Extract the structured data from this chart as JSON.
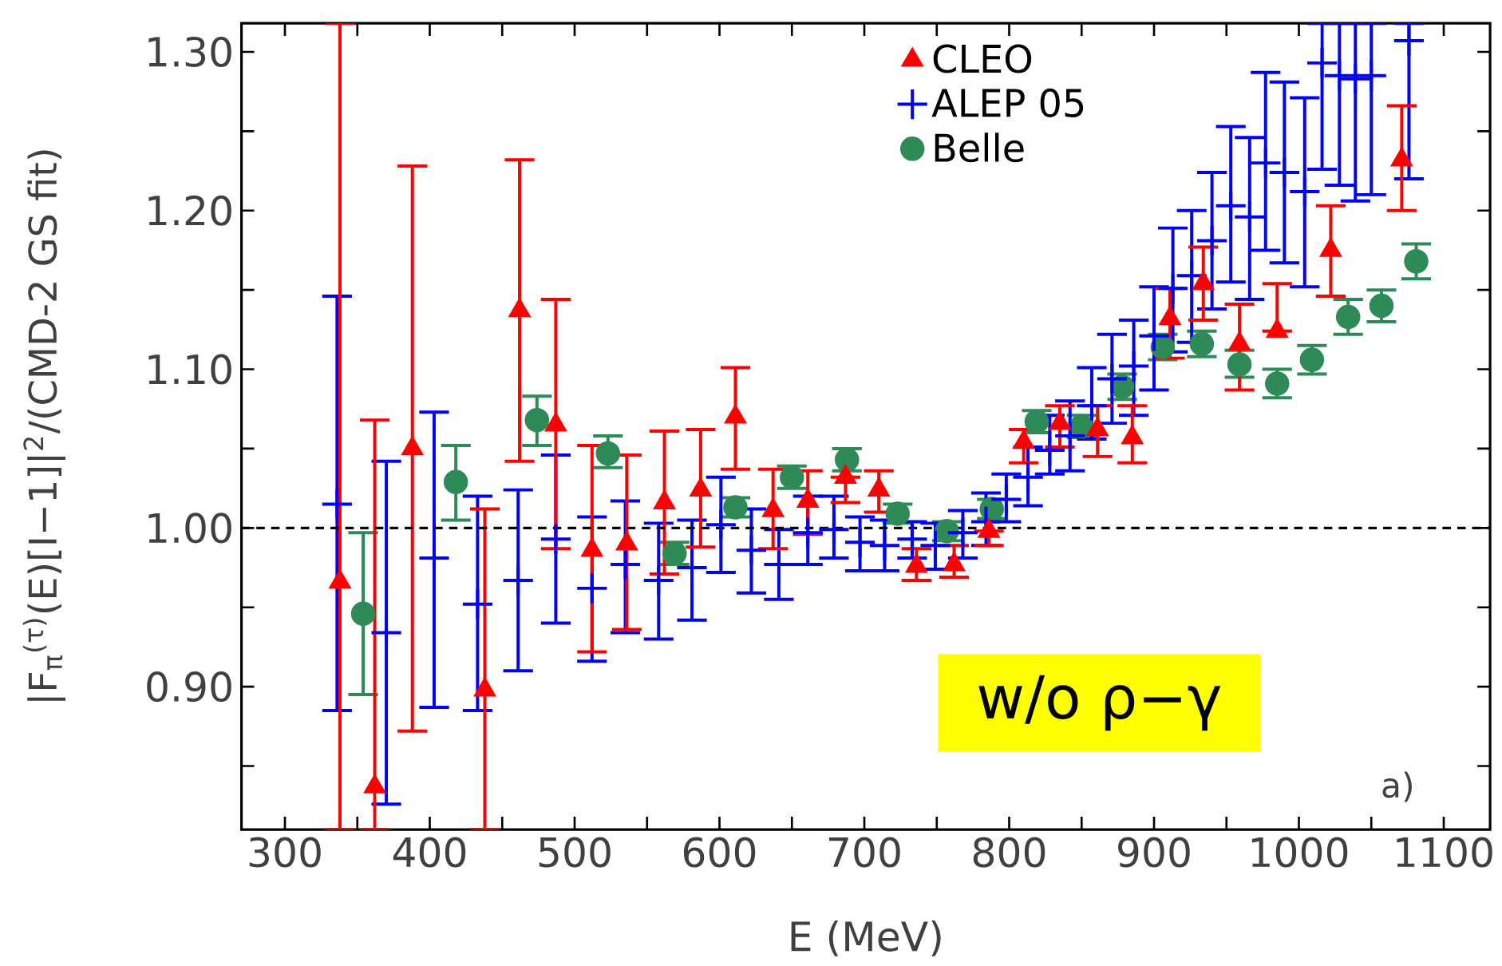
{
  "chart_data": {
    "type": "scatter",
    "xlabel": "E (MeV)",
    "ylabel": "|F$_{π}$$^{(τ)}$(E)[I−1]|$^{2}$/(CMD-2 GS fit)",
    "xlim": [
      270,
      1132
    ],
    "ylim": [
      0.81,
      1.318
    ],
    "xticks": [
      300,
      {
        "value": 350,
        "label": null
      },
      400,
      {
        "value": 450,
        "label": null
      },
      500,
      {
        "value": 550,
        "label": null
      },
      600,
      {
        "value": 650,
        "label": null
      },
      700,
      {
        "value": 750,
        "label": null
      },
      800,
      {
        "value": 850,
        "label": null
      },
      900,
      {
        "value": 950,
        "label": null
      },
      1000,
      {
        "value": 1050,
        "label": null
      },
      1100
    ],
    "yticks": [
      {
        "value": 0.85,
        "label": null
      },
      {
        "value": 0.9,
        "label": "0.90"
      },
      {
        "value": 0.95,
        "label": null
      },
      {
        "value": 1.0,
        "label": "1.00"
      },
      {
        "value": 1.05,
        "label": null
      },
      {
        "value": 1.1,
        "label": "1.10"
      },
      {
        "value": 1.15,
        "label": null
      },
      {
        "value": 1.2,
        "label": "1.20"
      },
      {
        "value": 1.25,
        "label": null
      },
      {
        "value": 1.3,
        "label": "1.30"
      }
    ],
    "legend": "top",
    "ref_lines": [
      {
        "axis": "y",
        "value": 1.0,
        "color": "#000000",
        "line_style": "dashed"
      }
    ],
    "annotations": [
      "w/o ρ−γ",
      "a)"
    ],
    "series": [
      {
        "name": "CLEO",
        "color": "#ff0000",
        "marker": "triangle",
        "x": [
          338,
          362,
          388,
          412,
          438,
          462,
          487,
          512,
          536,
          562,
          587,
          611,
          637,
          661,
          687,
          710,
          736,
          762,
          786,
          810,
          835,
          861,
          885,
          911,
          934,
          959,
          985,
          1022,
          1071
        ],
        "values": [
          0.966,
          0.837,
          1.05,
          null,
          0.898,
          1.137,
          1.065,
          0.986,
          0.99,
          1.016,
          1.024,
          1.07,
          1.011,
          1.017,
          1.032,
          1.024,
          0.976,
          0.977,
          0.998,
          1.054,
          1.066,
          1.062,
          1.057,
          1.132,
          1.154,
          1.116,
          1.124,
          1.175,
          1.232
        ],
        "errors": [
          [
            0.81,
            1.318
          ],
          [
            0.81,
            1.068
          ],
          [
            0.872,
            1.228
          ],
          null,
          [
            0.81,
            1.012
          ],
          [
            1.042,
            1.232
          ],
          [
            0.987,
            1.144
          ],
          [
            0.922,
            1.052
          ],
          [
            0.936,
            1.046
          ],
          [
            0.971,
            1.061
          ],
          [
            0.988,
            1.062
          ],
          [
            1.037,
            1.101
          ],
          [
            0.987,
            1.037
          ],
          [
            0.996,
            1.036
          ],
          [
            1.016,
            1.032
          ],
          [
            1.01,
            1.036
          ],
          [
            0.967,
            0.987
          ],
          [
            0.969,
            0.989
          ],
          [
            0.989,
            0.998
          ],
          [
            1.041,
            1.062
          ],
          [
            1.051,
            1.077
          ],
          [
            1.045,
            1.077
          ],
          [
            1.041,
            1.077
          ],
          [
            1.107,
            1.151
          ],
          [
            1.131,
            1.177
          ],
          [
            1.087,
            1.141
          ],
          [
            1.124,
            1.154
          ],
          [
            1.146,
            1.203
          ],
          [
            1.2,
            1.266
          ]
        ]
      },
      {
        "name": "ALEP 05",
        "color": "#0000ff",
        "marker": "cross",
        "x": [
          336,
          370,
          403,
          433,
          461,
          487,
          512,
          535,
          558,
          581,
          601,
          622,
          641,
          661,
          679,
          697,
          714,
          733,
          749,
          768,
          784,
          798,
          813,
          828,
          842,
          857,
          871,
          886,
          900,
          913,
          926,
          940,
          953,
          966,
          977,
          990,
          1004,
          1016,
          1028,
          1039,
          1050,
          1076
        ],
        "values": [
          1.015,
          0.934,
          0.981,
          0.952,
          0.967,
          0.993,
          0.962,
          0.977,
          0.967,
          0.975,
          1.002,
          0.986,
          0.977,
          0.997,
          0.999,
          0.991,
          0.989,
          0.993,
          0.989,
          0.997,
          1.004,
          1.018,
          1.032,
          1.049,
          1.058,
          1.077,
          1.094,
          1.102,
          1.121,
          1.151,
          1.159,
          1.181,
          1.203,
          1.196,
          1.23,
          1.224,
          1.212,
          1.293,
          1.285,
          1.283,
          1.285,
          1.307
        ],
        "errors": [
          [
            0.885,
            1.146
          ],
          [
            0.826,
            1.042
          ],
          [
            0.887,
            1.073
          ],
          [
            0.885,
            1.02
          ],
          [
            0.91,
            1.024
          ],
          [
            0.94,
            1.046
          ],
          [
            0.916,
            1.007
          ],
          [
            0.934,
            1.017
          ],
          [
            0.93,
            1.003
          ],
          [
            0.942,
            1.005
          ],
          [
            0.972,
            1.032
          ],
          [
            0.959,
            1.012
          ],
          [
            0.955,
            0.999
          ],
          [
            0.977,
            1.02
          ],
          [
            0.981,
            1.02
          ],
          [
            0.973,
            1.007
          ],
          [
            0.973,
            1.005
          ],
          [
            0.981,
            1.004
          ],
          [
            0.974,
            1.003
          ],
          [
            0.981,
            1.011
          ],
          [
            0.989,
            1.022
          ],
          [
            1.004,
            1.034
          ],
          [
            1.014,
            1.051
          ],
          [
            1.034,
            1.071
          ],
          [
            1.036,
            1.08
          ],
          [
            1.056,
            1.101
          ],
          [
            1.066,
            1.122
          ],
          [
            1.071,
            1.131
          ],
          [
            1.087,
            1.152
          ],
          [
            1.111,
            1.189
          ],
          [
            1.117,
            1.2
          ],
          [
            1.138,
            1.224
          ],
          [
            1.155,
            1.253
          ],
          [
            1.144,
            1.246
          ],
          [
            1.175,
            1.287
          ],
          [
            1.167,
            1.281
          ],
          [
            1.152,
            1.271
          ],
          [
            1.226,
            1.318
          ],
          [
            1.216,
            1.318
          ],
          [
            1.206,
            1.318
          ],
          [
            1.21,
            1.318
          ],
          [
            1.22,
            1.318
          ]
        ]
      },
      {
        "name": "Belle",
        "color": "#2e8b57",
        "marker": "circle",
        "x": [
          354,
          418,
          474,
          523,
          569,
          611,
          650,
          688,
          723,
          757,
          788,
          819,
          850,
          878,
          906,
          933,
          959,
          985,
          1009,
          1034,
          1057,
          1081
        ],
        "values": [
          0.946,
          1.029,
          1.068,
          1.047,
          0.984,
          1.013,
          1.032,
          1.043,
          1.009,
          0.998,
          1.012,
          1.067,
          1.064,
          1.089,
          1.114,
          1.116,
          1.103,
          1.091,
          1.106,
          1.133,
          1.14,
          1.168
        ],
        "errors": [
          [
            0.895,
            0.997
          ],
          [
            1.005,
            1.052
          ],
          [
            1.052,
            1.083
          ],
          [
            1.038,
            1.058
          ],
          [
            0.977,
            0.991
          ],
          [
            1.007,
            1.019
          ],
          [
            1.025,
            1.039
          ],
          [
            1.036,
            1.05
          ],
          [
            1.003,
            1.015
          ],
          [
            0.992,
            1.004
          ],
          [
            1.006,
            1.018
          ],
          [
            1.06,
            1.074
          ],
          [
            1.057,
            1.071
          ],
          [
            1.081,
            1.097
          ],
          [
            1.106,
            1.122
          ],
          [
            1.108,
            1.124
          ],
          [
            1.095,
            1.112
          ],
          [
            1.082,
            1.1
          ],
          [
            1.097,
            1.115
          ],
          [
            1.122,
            1.144
          ],
          [
            1.13,
            1.15
          ],
          [
            1.157,
            1.179
          ]
        ]
      }
    ]
  }
}
